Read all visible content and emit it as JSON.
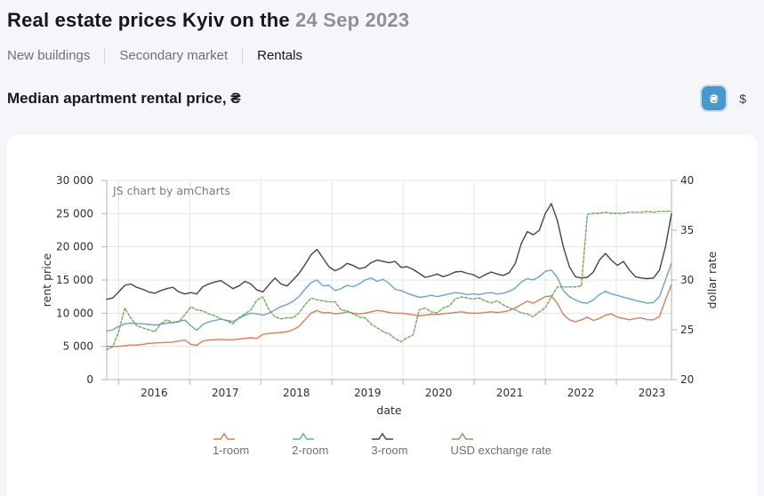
{
  "header": {
    "title_main": "Real estate prices Kyiv on the",
    "title_date": "24 Sep 2023"
  },
  "tabs": [
    {
      "label": "New buildings"
    },
    {
      "label": "Secondary market"
    },
    {
      "label": "Rentals"
    }
  ],
  "active_tab": "Rentals",
  "section": {
    "heading": "Median apartment rental price, ₴",
    "uah_symbol": "₴",
    "usd_symbol": "$"
  },
  "colors": {
    "accent_blue": "#4a98cb",
    "page_bg": "#f5f6fa",
    "card_bg": "#ffffff",
    "grid": "#e5e5e5",
    "axis": "#b3b3b3"
  },
  "chart_data": {
    "type": "line",
    "title": "Median apartment rental price, ₴",
    "watermark": "JS chart by amCharts",
    "xlabel": "date",
    "ylabel_left": "rent price",
    "ylabel_right": "dollar rate",
    "legend_position": "bottom",
    "grid": true,
    "x_start": "2015-11",
    "x_end": "2023-09",
    "x_interval": "month",
    "x_range": [
      2015.833,
      2023.775
    ],
    "x_years": [
      2016,
      2017,
      2018,
      2019,
      2020,
      2021,
      2022,
      2023
    ],
    "x_tick_labels": [
      "2016",
      "2017",
      "2018",
      "2019",
      "2020",
      "2021",
      "2022",
      "2023"
    ],
    "y_left_range": [
      0,
      30000
    ],
    "y_left_ticks": [
      0,
      5000,
      10000,
      15000,
      20000,
      25000,
      30000
    ],
    "y_left_labels": [
      "0",
      "5 000",
      "10 000",
      "15 000",
      "20 000",
      "25 000",
      "30 000"
    ],
    "y_right_range": [
      20,
      40
    ],
    "y_right_ticks": [
      20,
      25,
      30,
      35,
      40
    ],
    "y_right_labels": [
      "20",
      "25",
      "30",
      "35",
      "40"
    ],
    "series": [
      {
        "name": "1-room",
        "axis": "left",
        "color": "#d3805c",
        "dashed": false,
        "values": [
          5000,
          5000,
          5000,
          5100,
          5200,
          5200,
          5300,
          5450,
          5500,
          5550,
          5600,
          5650,
          5800,
          5950,
          5300,
          5150,
          5800,
          5950,
          6000,
          6050,
          6000,
          6000,
          6100,
          6200,
          6300,
          6200,
          6800,
          6950,
          7000,
          7100,
          7200,
          7500,
          8000,
          9000,
          10000,
          10400,
          10050,
          10100,
          9900,
          10000,
          10200,
          10000,
          9900,
          10000,
          10200,
          10400,
          10300,
          10100,
          10000,
          10000,
          9900,
          9750,
          9600,
          9700,
          9850,
          9800,
          9900,
          10000,
          10100,
          10200,
          10050,
          10000,
          10000,
          10100,
          10200,
          10100,
          10200,
          10400,
          10800,
          11300,
          11800,
          11500,
          12000,
          12500,
          12600,
          11500,
          9800,
          9000,
          8700,
          9000,
          9400,
          8900,
          9200,
          9700,
          9900,
          9400,
          9200,
          9000,
          9200,
          9300,
          9000,
          9000,
          9500,
          12000,
          14300
        ]
      },
      {
        "name": "2-room",
        "axis": "left",
        "color": "#6da3c6",
        "dashed": false,
        "values": [
          7300,
          7500,
          8000,
          8400,
          8500,
          8450,
          8400,
          8300,
          8200,
          8350,
          8500,
          8600,
          8800,
          8950,
          8100,
          7400,
          8300,
          8700,
          8900,
          9100,
          8900,
          8750,
          9200,
          9700,
          10000,
          9900,
          9700,
          10000,
          10500,
          11000,
          11300,
          11800,
          12500,
          13600,
          14600,
          15000,
          14100,
          14200,
          13400,
          13700,
          14200,
          14000,
          14400,
          15000,
          15300,
          14800,
          15100,
          14500,
          13600,
          13400,
          13000,
          12700,
          12400,
          12500,
          12700,
          12500,
          12700,
          12900,
          13100,
          13000,
          12800,
          12900,
          12800,
          13000,
          13100,
          12900,
          13000,
          13300,
          13800,
          14700,
          15200,
          15000,
          15500,
          16300,
          16500,
          15400,
          13400,
          12500,
          12000,
          11600,
          11500,
          12000,
          12800,
          13300,
          12900,
          12700,
          12400,
          12200,
          11900,
          11700,
          11500,
          11600,
          12500,
          15000,
          17500
        ]
      },
      {
        "name": "3-room",
        "axis": "left",
        "color": "#454545",
        "dashed": false,
        "values": [
          12100,
          12300,
          13200,
          14200,
          14400,
          13900,
          13600,
          13200,
          13000,
          13400,
          13700,
          13900,
          13200,
          12900,
          13100,
          12900,
          14000,
          14400,
          14700,
          14900,
          14300,
          13700,
          14100,
          14800,
          14400,
          13500,
          13200,
          14300,
          15300,
          14400,
          14100,
          15000,
          16000,
          17300,
          18800,
          19600,
          18300,
          17000,
          16400,
          16800,
          17500,
          17200,
          16700,
          16900,
          17600,
          18000,
          17800,
          17600,
          17800,
          16900,
          17000,
          16600,
          16000,
          15400,
          15600,
          15900,
          15500,
          15800,
          16200,
          16300,
          16000,
          15800,
          15300,
          15800,
          16200,
          15900,
          15700,
          16100,
          17500,
          20500,
          22300,
          21800,
          22500,
          25000,
          26500,
          24000,
          20000,
          17000,
          15500,
          15300,
          15400,
          16200,
          18000,
          19000,
          18000,
          17200,
          17800,
          16500,
          15500,
          15300,
          15200,
          15300,
          16500,
          20000,
          25000
        ]
      },
      {
        "name": "USD exchange rate",
        "axis": "right",
        "color": "#70aa5e",
        "dashed": true,
        "values": [
          23.0,
          23.3,
          24.8,
          27.2,
          26.2,
          25.4,
          25.2,
          25.0,
          24.8,
          25.6,
          26.0,
          25.7,
          25.8,
          26.5,
          27.3,
          27.0,
          26.9,
          26.6,
          26.4,
          26.1,
          25.9,
          25.6,
          26.2,
          26.6,
          27.0,
          28.0,
          28.3,
          27.0,
          26.3,
          26.1,
          26.2,
          26.2,
          26.7,
          27.5,
          28.2,
          28.0,
          27.9,
          27.8,
          27.8,
          27.0,
          26.9,
          26.6,
          26.3,
          26.2,
          25.6,
          25.2,
          24.8,
          24.6,
          24.1,
          23.8,
          24.2,
          24.5,
          27.0,
          27.2,
          26.8,
          26.7,
          27.2,
          27.4,
          28.1,
          28.3,
          28.2,
          28.1,
          28.2,
          27.9,
          27.7,
          27.9,
          27.5,
          27.2,
          27.0,
          26.7,
          26.6,
          26.3,
          26.8,
          27.2,
          28.3,
          29.3,
          29.3,
          29.3,
          29.3,
          29.4,
          36.6,
          36.7,
          36.7,
          36.8,
          36.7,
          36.7,
          36.7,
          36.8,
          36.8,
          36.8,
          36.9,
          36.8,
          36.9,
          36.9,
          36.9
        ]
      }
    ],
    "legend": [
      "1-room",
      "2-room",
      "3-room",
      "USD exchange rate"
    ]
  }
}
